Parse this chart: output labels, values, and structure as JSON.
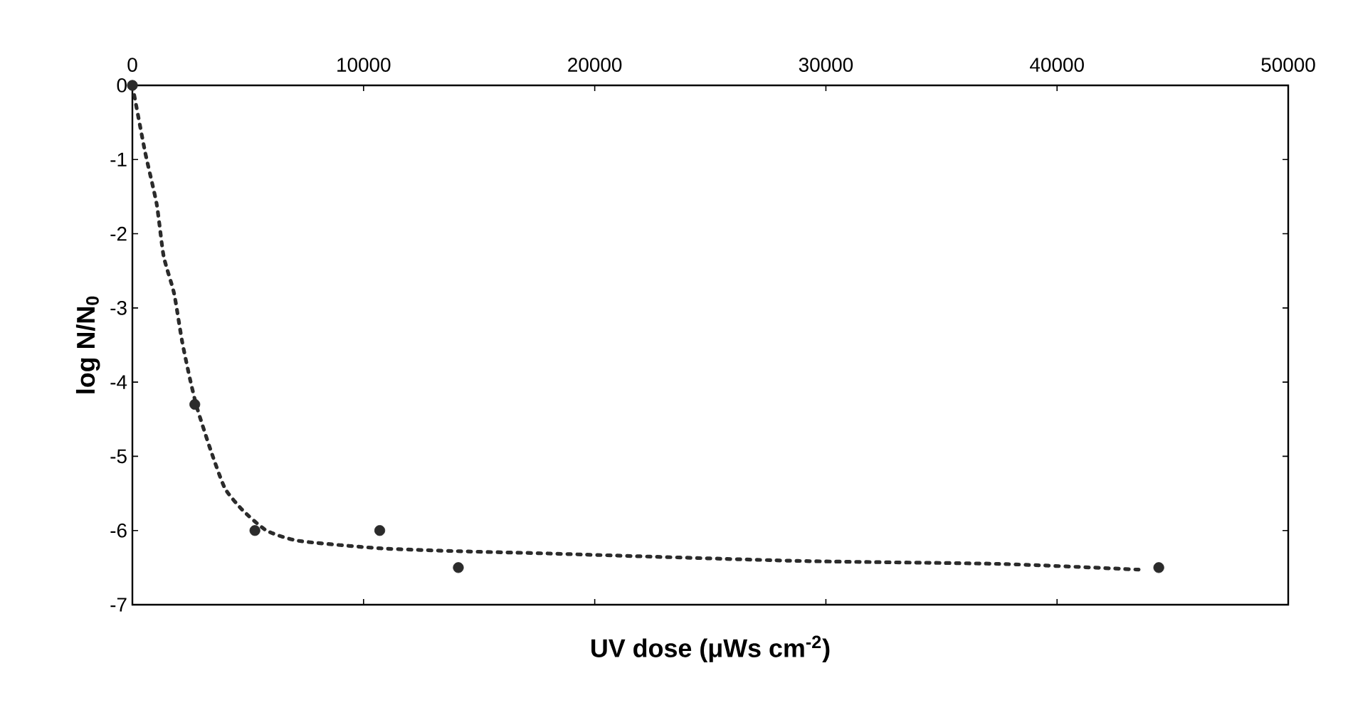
{
  "chart_data": {
    "type": "scatter",
    "xlabel": "UV dose (μWs cm$^{-2}$)",
    "ylabel": "log N/N$_{0}$",
    "xlim": [
      0,
      50000
    ],
    "xticks": [
      0,
      10000,
      20000,
      30000,
      40000,
      50000
    ],
    "ylim": [
      -7,
      0
    ],
    "yticks": [
      -7,
      -6,
      -5,
      -4,
      -3,
      -2,
      -1,
      0
    ],
    "grid": false,
    "series": [
      {
        "type": "scatter",
        "color": "#2b2b2b",
        "marker": "circle",
        "x": [
          0,
          2700,
          5300,
          10700,
          14100,
          44400
        ],
        "values": [
          0,
          -4.3,
          -6.0,
          -6.0,
          -6.5,
          -6.5
        ]
      },
      {
        "type": "line",
        "color": "#2b2b2b",
        "line_style": "dotted",
        "marker": "none",
        "x": [
          0,
          550,
          1050,
          1350,
          1800,
          2150,
          2500,
          2800,
          3400,
          4000,
          4750,
          5800,
          7200,
          10700,
          14200,
          18000,
          28800,
          37500,
          43700
        ],
        "values": [
          0,
          -0.9,
          -1.6,
          -2.3,
          -2.8,
          -3.45,
          -3.97,
          -4.35,
          -4.93,
          -5.43,
          -5.72,
          -6.0,
          -6.14,
          -6.24,
          -6.28,
          -6.31,
          -6.41,
          -6.45,
          -6.53
        ]
      }
    ]
  }
}
